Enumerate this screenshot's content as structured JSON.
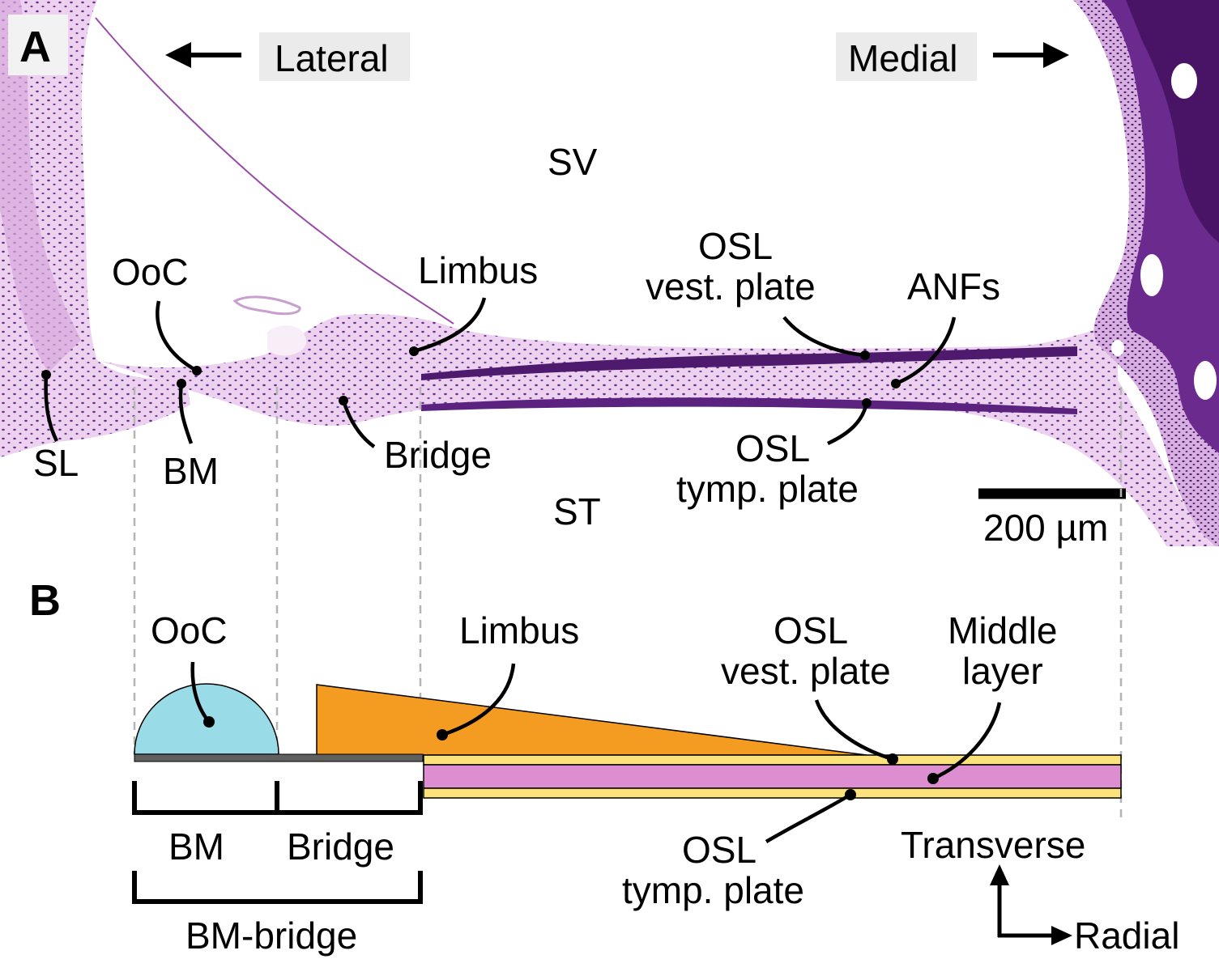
{
  "panel_a": {
    "letter": "A",
    "lateral": "Lateral",
    "medial": "Medial",
    "sv": "SV",
    "st": "ST",
    "ooc": "OoC",
    "limbus": "Limbus",
    "osl_vest_1": "OSL",
    "osl_vest_2": "vest. plate",
    "anfs": "ANFs",
    "sl": "SL",
    "bm": "BM",
    "bridge": "Bridge",
    "osl_tymp_1": "OSL",
    "osl_tymp_2": "tymp. plate",
    "scale_bar": "200 µm"
  },
  "panel_b": {
    "letter": "B",
    "ooc": "OoC",
    "limbus": "Limbus",
    "osl_vest_1": "OSL",
    "osl_vest_2": "vest. plate",
    "middle_1": "Middle",
    "middle_2": "layer",
    "bm": "BM",
    "bridge": "Bridge",
    "bm_bridge": "BM-bridge",
    "osl_tymp_1": "OSL",
    "osl_tymp_2": "tymp. plate",
    "transverse": "Transverse",
    "radial": "Radial"
  },
  "colors": {
    "ooc_fill": "#99dbe6",
    "limbus_fill": "#f49b22",
    "osl_plate_fill": "#fbe27a",
    "middle_layer_fill": "#dd8ed1",
    "bm_bar": "#606060",
    "tissue_light": "#ead0ec",
    "tissue_dark": "#5a1e80",
    "label_box": "#ebebeb"
  }
}
